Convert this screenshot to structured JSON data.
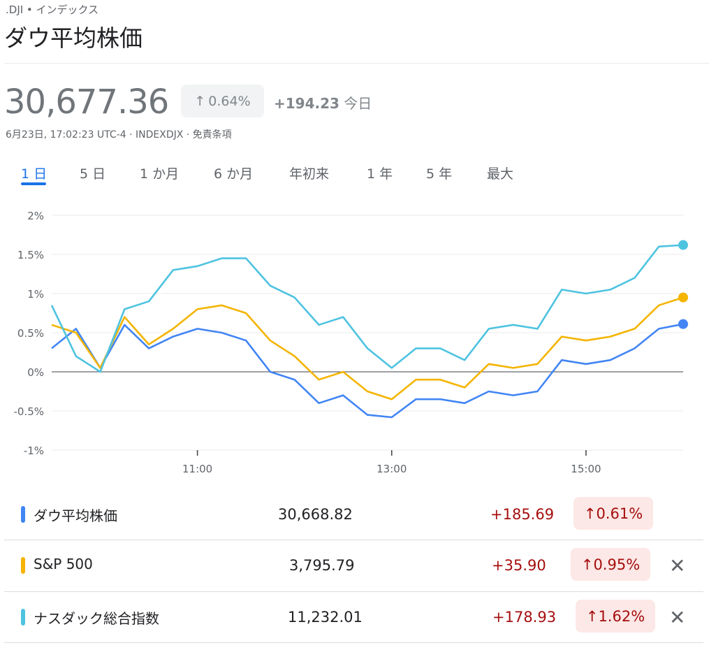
{
  "header": {
    "ticker": ".DJI • インデックス",
    "name": "ダウ平均株価",
    "price": "30,677.36",
    "change_pct": "0.64%",
    "change_abs": "+194.23",
    "change_period": "今日",
    "meta": "6月23日, 17:02:23 UTC-4 · INDEXDJX · 免責条項",
    "up_arrow": "↑"
  },
  "tabs": [
    {
      "label": "1 日",
      "active": true
    },
    {
      "label": "5 日"
    },
    {
      "label": "1 か月"
    },
    {
      "label": "6 か月"
    },
    {
      "label": "年初来"
    },
    {
      "label": "1 年"
    },
    {
      "label": "5 年"
    },
    {
      "label": "最大"
    }
  ],
  "chart_data": {
    "type": "line",
    "yticks": [
      "2%",
      "1.5%",
      "1%",
      "0.5%",
      "0%",
      "-0.5%",
      "-1%"
    ],
    "ylim": [
      -1,
      2
    ],
    "xticks": [
      "11:00",
      "13:00",
      "15:00"
    ],
    "xlim": [
      "9:30",
      "16:00"
    ],
    "series": [
      {
        "name": "ダウ平均株価",
        "color": "#4285f4",
        "x": [
          "9:30",
          "9:45",
          "10:00",
          "10:15",
          "10:30",
          "10:45",
          "11:00",
          "11:15",
          "11:30",
          "11:45",
          "12:00",
          "12:15",
          "12:30",
          "12:45",
          "13:00",
          "13:15",
          "13:30",
          "13:45",
          "14:00",
          "14:15",
          "14:30",
          "14:45",
          "15:00",
          "15:15",
          "15:30",
          "15:45",
          "16:00"
        ],
        "values": [
          0.3,
          0.55,
          0.05,
          0.6,
          0.3,
          0.45,
          0.55,
          0.5,
          0.4,
          0.0,
          -0.1,
          -0.4,
          -0.3,
          -0.55,
          -0.58,
          -0.35,
          -0.35,
          -0.4,
          -0.25,
          -0.3,
          -0.25,
          0.15,
          0.1,
          0.15,
          0.3,
          0.55,
          0.61
        ]
      },
      {
        "name": "S&P 500",
        "color": "#f4b400",
        "x": [
          "9:30",
          "9:45",
          "10:00",
          "10:15",
          "10:30",
          "10:45",
          "11:00",
          "11:15",
          "11:30",
          "11:45",
          "12:00",
          "12:15",
          "12:30",
          "12:45",
          "13:00",
          "13:15",
          "13:30",
          "13:45",
          "14:00",
          "14:15",
          "14:30",
          "14:45",
          "15:00",
          "15:15",
          "15:30",
          "15:45",
          "16:00"
        ],
        "values": [
          0.6,
          0.5,
          0.05,
          0.7,
          0.35,
          0.55,
          0.8,
          0.85,
          0.75,
          0.4,
          0.2,
          -0.1,
          0.0,
          -0.25,
          -0.35,
          -0.1,
          -0.1,
          -0.2,
          0.1,
          0.05,
          0.1,
          0.45,
          0.4,
          0.45,
          0.55,
          0.85,
          0.95
        ]
      },
      {
        "name": "ナスダック総合指数",
        "color": "#4ec3e0",
        "x": [
          "9:30",
          "9:45",
          "10:00",
          "10:15",
          "10:30",
          "10:45",
          "11:00",
          "11:15",
          "11:30",
          "11:45",
          "12:00",
          "12:15",
          "12:30",
          "12:45",
          "13:00",
          "13:15",
          "13:30",
          "13:45",
          "14:00",
          "14:15",
          "14:30",
          "14:45",
          "15:00",
          "15:15",
          "15:30",
          "15:45",
          "16:00"
        ],
        "values": [
          0.85,
          0.2,
          0.0,
          0.8,
          0.9,
          1.3,
          1.35,
          1.45,
          1.45,
          1.1,
          0.95,
          0.6,
          0.7,
          0.3,
          0.05,
          0.3,
          0.3,
          0.15,
          0.55,
          0.6,
          0.55,
          1.05,
          1.0,
          1.05,
          1.2,
          1.6,
          1.62
        ]
      }
    ]
  },
  "table": {
    "rows": [
      {
        "name": "ダウ平均株価",
        "value": "30,668.82",
        "change": "+185.69",
        "pct": "0.61%",
        "color": "#4285f4",
        "removable": false
      },
      {
        "name": "S&P 500",
        "value": "3,795.79",
        "change": "+35.90",
        "pct": "0.95%",
        "color": "#f4b400",
        "removable": true
      },
      {
        "name": "ナスダック総合指数",
        "value": "11,232.01",
        "change": "+178.93",
        "pct": "1.62%",
        "color": "#4ec3e0",
        "removable": true
      }
    ],
    "close_glyph": "✕"
  }
}
